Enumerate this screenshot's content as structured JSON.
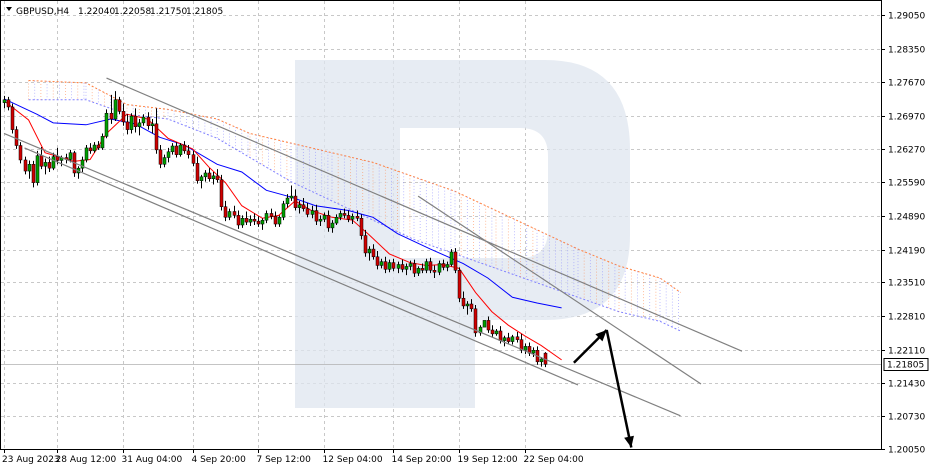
{
  "chart_data": {
    "type": "candlestick",
    "symbol": "GBPUSD,H4",
    "ohlc_text": {
      "open": "1.22040",
      "high": "1.22058",
      "low": "1.21750",
      "close": "1.21805"
    },
    "current_price": 1.21805,
    "current_price_label": "1.21805",
    "ylim": [
      1.2005,
      1.2935
    ],
    "y_ticks": [
      1.2905,
      1.2835,
      1.2767,
      1.2697,
      1.2627,
      1.2559,
      1.2489,
      1.2419,
      1.2351,
      1.2281,
      1.2211,
      1.2143,
      1.2073,
      1.2005
    ],
    "y_tick_labels": [
      "1.29050",
      "1.28350",
      "1.27670",
      "1.26970",
      "1.26270",
      "1.25590",
      "1.24890",
      "1.24190",
      "1.23510",
      "1.22810",
      "1.22110",
      "1.21430",
      "1.20730",
      "1.20050"
    ],
    "x_tick_labels": [
      "23 Aug 2023",
      "28 Aug 12:00",
      "31 Aug 04:00",
      "4 Sep 20:00",
      "7 Sep 12:00",
      "12 Sep 04:00",
      "14 Sep 20:00",
      "19 Sep 12:00",
      "22 Sep 04:00"
    ],
    "x_tick_bars": [
      0,
      13,
      29,
      46,
      62,
      78,
      95,
      111,
      127
    ],
    "grid": true,
    "colors": {
      "bull": "#00a000",
      "bear": "#d00000",
      "wick": "#000000",
      "tenkan": "#ff0000",
      "kijun": "#0000ff",
      "cloud_bear": "#ff8040",
      "cloud_bull": "#8080ff",
      "channel": "#808080",
      "arrow": "#000000",
      "watermark": "#dce3ee"
    },
    "candles": [
      [
        1.2724,
        1.2738,
        1.2712,
        1.273
      ],
      [
        1.273,
        1.2736,
        1.2708,
        1.2715
      ],
      [
        1.2715,
        1.2722,
        1.266,
        1.2668
      ],
      [
        1.2668,
        1.2675,
        1.2628,
        1.2635
      ],
      [
        1.2635,
        1.2642,
        1.2598,
        1.2605
      ],
      [
        1.2605,
        1.2612,
        1.2575,
        1.2582
      ],
      [
        1.2582,
        1.2604,
        1.2566,
        1.2596
      ],
      [
        1.2596,
        1.2603,
        1.2548,
        1.2558
      ],
      [
        1.2558,
        1.2624,
        1.2552,
        1.2614
      ],
      [
        1.2614,
        1.2632,
        1.2586,
        1.2592
      ],
      [
        1.2592,
        1.2608,
        1.2575,
        1.26
      ],
      [
        1.26,
        1.2612,
        1.258,
        1.2588
      ],
      [
        1.2588,
        1.262,
        1.2584,
        1.2612
      ],
      [
        1.2612,
        1.263,
        1.2596,
        1.2604
      ],
      [
        1.2604,
        1.2614,
        1.2592,
        1.261
      ],
      [
        1.261,
        1.2618,
        1.2598,
        1.2606
      ],
      [
        1.2606,
        1.2626,
        1.26,
        1.262
      ],
      [
        1.262,
        1.2624,
        1.257,
        1.2578
      ],
      [
        1.2578,
        1.2592,
        1.2566,
        1.2588
      ],
      [
        1.2588,
        1.2612,
        1.258,
        1.2605
      ],
      [
        1.2605,
        1.2636,
        1.26,
        1.263
      ],
      [
        1.263,
        1.264,
        1.2618,
        1.2624
      ],
      [
        1.2624,
        1.2642,
        1.262,
        1.2636
      ],
      [
        1.2636,
        1.2644,
        1.2626,
        1.263
      ],
      [
        1.263,
        1.266,
        1.2626,
        1.2654
      ],
      [
        1.2654,
        1.271,
        1.265,
        1.2702
      ],
      [
        1.2702,
        1.274,
        1.268,
        1.269
      ],
      [
        1.269,
        1.2748,
        1.2686,
        1.273
      ],
      [
        1.273,
        1.2736,
        1.27,
        1.2706
      ],
      [
        1.2706,
        1.2722,
        1.2676,
        1.2684
      ],
      [
        1.2684,
        1.27,
        1.2658,
        1.2668
      ],
      [
        1.2668,
        1.2702,
        1.266,
        1.2696
      ],
      [
        1.2696,
        1.2712,
        1.2662,
        1.2674
      ],
      [
        1.2674,
        1.269,
        1.2656,
        1.2682
      ],
      [
        1.2682,
        1.27,
        1.2676,
        1.2694
      ],
      [
        1.2694,
        1.2704,
        1.2668,
        1.2676
      ],
      [
        1.2676,
        1.269,
        1.266,
        1.268
      ],
      [
        1.268,
        1.2712,
        1.2618,
        1.2626
      ],
      [
        1.2626,
        1.2636,
        1.2588,
        1.2596
      ],
      [
        1.2596,
        1.2616,
        1.259,
        1.261
      ],
      [
        1.261,
        1.263,
        1.26,
        1.2622
      ],
      [
        1.2622,
        1.264,
        1.2616,
        1.2634
      ],
      [
        1.2634,
        1.2642,
        1.261,
        1.2616
      ],
      [
        1.2616,
        1.264,
        1.2612,
        1.2636
      ],
      [
        1.2636,
        1.2644,
        1.2618,
        1.2624
      ],
      [
        1.2624,
        1.2636,
        1.2608,
        1.2616
      ],
      [
        1.2616,
        1.2624,
        1.2592,
        1.2598
      ],
      [
        1.2598,
        1.2612,
        1.2556,
        1.2562
      ],
      [
        1.2562,
        1.2574,
        1.2546,
        1.257
      ],
      [
        1.257,
        1.2584,
        1.256,
        1.2578
      ],
      [
        1.2578,
        1.2588,
        1.256,
        1.2566
      ],
      [
        1.2566,
        1.258,
        1.2554,
        1.2572
      ],
      [
        1.2572,
        1.2586,
        1.2558,
        1.2564
      ],
      [
        1.2564,
        1.2574,
        1.25,
        1.2508
      ],
      [
        1.2508,
        1.252,
        1.2478,
        1.2486
      ],
      [
        1.2486,
        1.2504,
        1.248,
        1.2498
      ],
      [
        1.2498,
        1.251,
        1.2484,
        1.249
      ],
      [
        1.249,
        1.25,
        1.2462,
        1.247
      ],
      [
        1.247,
        1.249,
        1.2464,
        1.2484
      ],
      [
        1.2484,
        1.2498,
        1.247,
        1.2476
      ],
      [
        1.2476,
        1.249,
        1.2468,
        1.2482
      ],
      [
        1.2482,
        1.2494,
        1.247,
        1.2478
      ],
      [
        1.2478,
        1.2488,
        1.2466,
        1.2472
      ],
      [
        1.2472,
        1.2484,
        1.246,
        1.248
      ],
      [
        1.248,
        1.25,
        1.2474,
        1.2494
      ],
      [
        1.2494,
        1.2504,
        1.2482,
        1.2488
      ],
      [
        1.2488,
        1.2498,
        1.2466,
        1.2472
      ],
      [
        1.2472,
        1.249,
        1.2466,
        1.2486
      ],
      [
        1.2486,
        1.252,
        1.248,
        1.2514
      ],
      [
        1.2514,
        1.2534,
        1.2506,
        1.2526
      ],
      [
        1.2526,
        1.2552,
        1.252,
        1.253
      ],
      [
        1.253,
        1.2544,
        1.25,
        1.2506
      ],
      [
        1.2506,
        1.252,
        1.2494,
        1.2512
      ],
      [
        1.2512,
        1.2526,
        1.2498,
        1.2504
      ],
      [
        1.2504,
        1.2516,
        1.2486,
        1.2492
      ],
      [
        1.2492,
        1.251,
        1.2484,
        1.25
      ],
      [
        1.25,
        1.2512,
        1.247,
        1.2478
      ],
      [
        1.2478,
        1.249,
        1.2468,
        1.2482
      ],
      [
        1.2482,
        1.2496,
        1.2476,
        1.249
      ],
      [
        1.249,
        1.25,
        1.2456,
        1.2464
      ],
      [
        1.2464,
        1.248,
        1.2454,
        1.2474
      ],
      [
        1.2474,
        1.2492,
        1.247,
        1.2486
      ],
      [
        1.2486,
        1.25,
        1.248,
        1.2494
      ],
      [
        1.2494,
        1.2504,
        1.2484,
        1.249
      ],
      [
        1.249,
        1.25,
        1.2476,
        1.2482
      ],
      [
        1.2482,
        1.2494,
        1.2472,
        1.2488
      ],
      [
        1.2488,
        1.25,
        1.2478,
        1.2484
      ],
      [
        1.2484,
        1.2492,
        1.244,
        1.2448
      ],
      [
        1.2448,
        1.246,
        1.2404,
        1.2412
      ],
      [
        1.2412,
        1.2426,
        1.2396,
        1.242
      ],
      [
        1.242,
        1.243,
        1.2398,
        1.2404
      ],
      [
        1.2404,
        1.2416,
        1.2378,
        1.2386
      ],
      [
        1.2386,
        1.24,
        1.238,
        1.2394
      ],
      [
        1.2394,
        1.2404,
        1.237,
        1.2378
      ],
      [
        1.2378,
        1.2398,
        1.2372,
        1.2392
      ],
      [
        1.2392,
        1.24,
        1.2374,
        1.238
      ],
      [
        1.238,
        1.2394,
        1.237,
        1.2388
      ],
      [
        1.2388,
        1.2398,
        1.2372,
        1.2378
      ],
      [
        1.2378,
        1.239,
        1.2366,
        1.2384
      ],
      [
        1.2384,
        1.2396,
        1.2376,
        1.239
      ],
      [
        1.239,
        1.2398,
        1.2362,
        1.237
      ],
      [
        1.237,
        1.2384,
        1.2364,
        1.238
      ],
      [
        1.238,
        1.239,
        1.237,
        1.2376
      ],
      [
        1.2376,
        1.24,
        1.237,
        1.2394
      ],
      [
        1.2394,
        1.2402,
        1.237,
        1.2376
      ],
      [
        1.2376,
        1.2386,
        1.236,
        1.2372
      ],
      [
        1.2372,
        1.2396,
        1.2366,
        1.239
      ],
      [
        1.239,
        1.2398,
        1.2376,
        1.2382
      ],
      [
        1.2382,
        1.2394,
        1.2374,
        1.2388
      ],
      [
        1.2388,
        1.242,
        1.2384,
        1.2414
      ],
      [
        1.2414,
        1.2422,
        1.237,
        1.2376
      ],
      [
        1.2376,
        1.2382,
        1.231,
        1.2318
      ],
      [
        1.2318,
        1.2332,
        1.2296,
        1.2302
      ],
      [
        1.2302,
        1.2312,
        1.2284,
        1.2306
      ],
      [
        1.2306,
        1.2316,
        1.229,
        1.2296
      ],
      [
        1.2296,
        1.2304,
        1.2238,
        1.2246
      ],
      [
        1.2246,
        1.2262,
        1.224,
        1.2258
      ],
      [
        1.2258,
        1.2268,
        1.2264,
        1.2272
      ],
      [
        1.2272,
        1.228,
        1.2246,
        1.2252
      ],
      [
        1.2252,
        1.2262,
        1.2238,
        1.2244
      ],
      [
        1.2244,
        1.2254,
        1.224,
        1.225
      ],
      [
        1.225,
        1.226,
        1.2224,
        1.223
      ],
      [
        1.223,
        1.224,
        1.2218,
        1.2236
      ],
      [
        1.2236,
        1.2246,
        1.2224,
        1.2228
      ],
      [
        1.2228,
        1.2242,
        1.2222,
        1.2238
      ],
      [
        1.2238,
        1.2248,
        1.2226,
        1.2232
      ],
      [
        1.2232,
        1.2244,
        1.2204,
        1.221
      ],
      [
        1.221,
        1.2224,
        1.2202,
        1.2218
      ],
      [
        1.2218,
        1.2226,
        1.2198,
        1.2204
      ],
      [
        1.2204,
        1.2216,
        1.2196,
        1.221
      ],
      [
        1.221,
        1.2218,
        1.218,
        1.2186
      ],
      [
        1.2186,
        1.2196,
        1.2176,
        1.2192
      ],
      [
        1.2204,
        1.2206,
        1.2175,
        1.2181
      ]
    ],
    "tenkan": [
      [
        0,
        1.2728
      ],
      [
        6,
        1.2688
      ],
      [
        10,
        1.262
      ],
      [
        17,
        1.2602
      ],
      [
        21,
        1.2606
      ],
      [
        25,
        1.266
      ],
      [
        30,
        1.27
      ],
      [
        35,
        1.269
      ],
      [
        40,
        1.265
      ],
      [
        46,
        1.2628
      ],
      [
        50,
        1.259
      ],
      [
        54,
        1.2558
      ],
      [
        58,
        1.251
      ],
      [
        63,
        1.2484
      ],
      [
        67,
        1.249
      ],
      [
        71,
        1.252
      ],
      [
        75,
        1.25
      ],
      [
        80,
        1.2486
      ],
      [
        85,
        1.248
      ],
      [
        89,
        1.245
      ],
      [
        94,
        1.241
      ],
      [
        99,
        1.2392
      ],
      [
        103,
        1.2386
      ],
      [
        107,
        1.2388
      ],
      [
        111,
        1.238
      ],
      [
        115,
        1.233
      ],
      [
        119,
        1.229
      ],
      [
        123,
        1.2262
      ],
      [
        127,
        1.224
      ],
      [
        131,
        1.222
      ],
      [
        136,
        1.219
      ]
    ],
    "kijun": [
      [
        0,
        1.2732
      ],
      [
        8,
        1.27
      ],
      [
        12,
        1.2682
      ],
      [
        20,
        1.2678
      ],
      [
        26,
        1.269
      ],
      [
        32,
        1.268
      ],
      [
        38,
        1.2652
      ],
      [
        44,
        1.2636
      ],
      [
        52,
        1.2596
      ],
      [
        58,
        1.258
      ],
      [
        64,
        1.2542
      ],
      [
        70,
        1.2528
      ],
      [
        76,
        1.251
      ],
      [
        84,
        1.25
      ],
      [
        90,
        1.2486
      ],
      [
        96,
        1.2452
      ],
      [
        104,
        1.242
      ],
      [
        112,
        1.239
      ],
      [
        118,
        1.236
      ],
      [
        124,
        1.232
      ],
      [
        130,
        1.2308
      ],
      [
        136,
        1.2298
      ]
    ],
    "cloud": [
      {
        "x": [
          6,
          20,
          30,
          40,
          52,
          60,
          70,
          80,
          90,
          100,
          110,
          120,
          130,
          140,
          150,
          160,
          165
        ],
        "top": [
          1.277,
          1.2765,
          1.272,
          1.271,
          1.269,
          1.266,
          1.264,
          1.262,
          1.26,
          1.257,
          1.254,
          1.25,
          1.246,
          1.242,
          1.2385,
          1.236,
          1.233
        ],
        "bottom": [
          1.273,
          1.273,
          1.27,
          1.269,
          1.265,
          1.261,
          1.256,
          1.252,
          1.248,
          1.244,
          1.241,
          1.238,
          1.235,
          1.232,
          1.229,
          1.227,
          1.225
        ]
      }
    ],
    "trend_lines": [
      {
        "name": "upper-channel",
        "bar0": 25,
        "p0": 1.2775,
        "bar1": 180,
        "p1": 1.2208
      },
      {
        "name": "lower-channel",
        "bar0": 0,
        "p0": 1.266,
        "bar1": 165,
        "p1": 1.2074
      },
      {
        "name": "inner-line-a",
        "bar0": 5,
        "p0": 1.263,
        "bar1": 140,
        "p1": 1.2138
      },
      {
        "name": "inner-line-b",
        "bar0": 101,
        "p0": 1.253,
        "bar1": 170,
        "p1": 1.214
      }
    ],
    "forecast_arrows": [
      {
        "name": "up-arrow",
        "bar0": 139,
        "p0": 1.2184,
        "bar1": 147,
        "p1": 1.2252
      },
      {
        "name": "down-arrow",
        "bar0": 147,
        "p0": 1.2252,
        "bar1": 153,
        "p1": 1.2008
      }
    ]
  }
}
